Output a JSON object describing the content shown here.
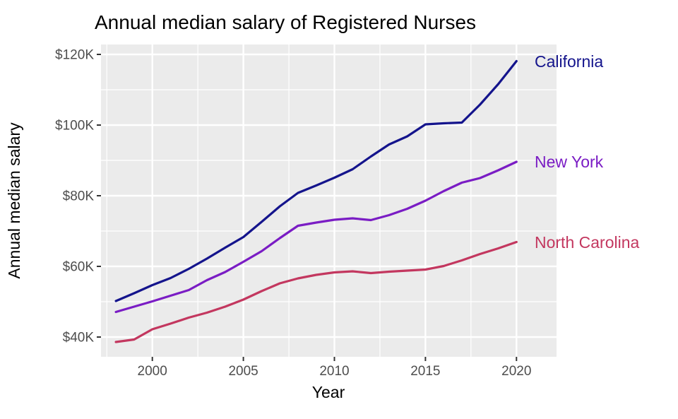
{
  "chart_data": {
    "type": "line",
    "title": "Annual median salary of Registered Nurses",
    "xlabel": "Year",
    "ylabel": "Annual median salary",
    "grid": "on",
    "legend_position": "direct-labels-right",
    "panel_bg": "#EBEBEB",
    "grid_color": "#FFFFFF",
    "tick_label_color": "#4D4D4D",
    "tick_mark_color": "#333333",
    "title_color": "#000000",
    "xlim": [
      1997.18,
      2022.2
    ],
    "ylim": [
      34.4,
      122.8
    ],
    "x": [
      1998,
      1999,
      2000,
      2001,
      2002,
      2003,
      2004,
      2005,
      2006,
      2007,
      2008,
      2009,
      2010,
      2011,
      2012,
      2013,
      2014,
      2015,
      2016,
      2017,
      2018,
      2019,
      2020
    ],
    "x_ticks": {
      "values": [
        2000,
        2005,
        2010,
        2015,
        2020
      ],
      "labels": [
        "2000",
        "2005",
        "2010",
        "2015",
        "2020"
      ]
    },
    "y_ticks": {
      "values": [
        40,
        60,
        80,
        100,
        120
      ],
      "labels": [
        "$40K",
        "$60K",
        "$80K",
        "$100K",
        "$120K"
      ]
    },
    "x_minor": [
      1997.5,
      2002.5,
      2007.5,
      2012.5,
      2017.5
    ],
    "y_minor": [
      50,
      70,
      90,
      110
    ],
    "y_unit": "thousand USD per year",
    "series": [
      {
        "name": "California",
        "color": "#14148C",
        "values": [
          50.2,
          52.4,
          54.7,
          56.7,
          59.3,
          62.2,
          65.3,
          68.3,
          72.6,
          77.0,
          80.8,
          82.9,
          85.1,
          87.5,
          91.1,
          94.5,
          96.8,
          100.2,
          100.5,
          100.7,
          105.8,
          111.6,
          118.1
        ]
      },
      {
        "name": "New York",
        "color": "#7A1CC4",
        "values": [
          47.1,
          48.6,
          50.1,
          51.7,
          53.3,
          56.1,
          58.4,
          61.3,
          64.3,
          68.0,
          71.5,
          72.4,
          73.2,
          73.6,
          73.1,
          74.5,
          76.3,
          78.6,
          81.3,
          83.7,
          85.0,
          87.2,
          89.6
        ]
      },
      {
        "name": "North Carolina",
        "color": "#C3375F",
        "values": [
          38.6,
          39.3,
          42.2,
          43.8,
          45.5,
          46.9,
          48.6,
          50.6,
          53.0,
          55.2,
          56.6,
          57.6,
          58.3,
          58.6,
          58.1,
          58.5,
          58.8,
          59.1,
          60.1,
          61.7,
          63.5,
          65.1,
          66.9
        ]
      }
    ]
  }
}
